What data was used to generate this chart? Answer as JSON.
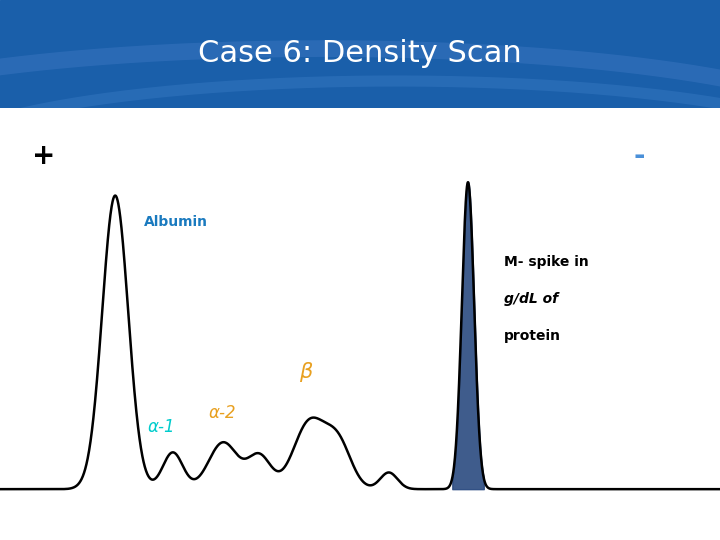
{
  "title": "Case 6: Density Scan",
  "title_color": "#ffffff",
  "title_bg_color": "#1a5faa",
  "plus_label": "+",
  "minus_label": "-",
  "plus_color": "#000000",
  "minus_color": "#4a90d9",
  "albumin_label": "Albumin",
  "albumin_color": "#1a7abf",
  "alpha1_label": "α-1",
  "alpha1_color": "#00cccc",
  "alpha2_label": "α-2",
  "alpha2_color": "#e8a020",
  "beta_label": "β",
  "beta_color": "#e8a020",
  "mspike_line1": "M- spike in",
  "mspike_line2": "g/dL of",
  "mspike_line3": "protein",
  "mspike_fill_color": "#2a4a80",
  "line_color": "#000000",
  "line_width": 1.8,
  "bg_color": "#ffffff"
}
